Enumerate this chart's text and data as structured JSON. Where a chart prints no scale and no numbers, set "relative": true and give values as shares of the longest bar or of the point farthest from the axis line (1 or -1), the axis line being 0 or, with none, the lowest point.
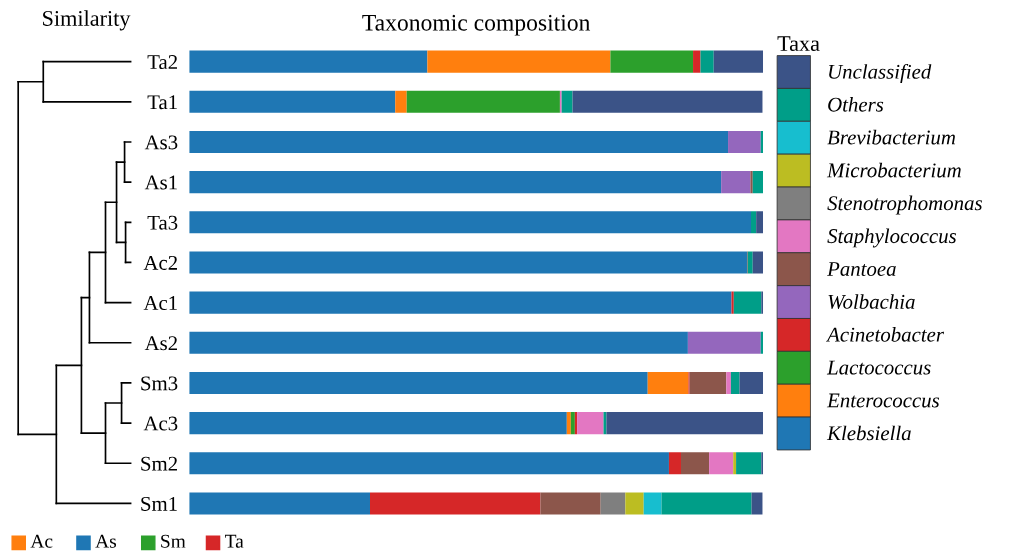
{
  "chart_data": {
    "type": "bar",
    "orientation": "horizontal",
    "stacked": true,
    "relative": true,
    "title": "Taxonomic composition",
    "legend_title": "Taxa",
    "legend": "right",
    "grid": false,
    "annotations": [
      "Similarity",
      "Ac",
      "As",
      "Sm",
      "Ta"
    ],
    "categories": [
      "Ta2",
      "Ta1",
      "As3",
      "As1",
      "Ta3",
      "Ac2",
      "Ac1",
      "As2",
      "Sm3",
      "Ac3",
      "Sm2",
      "Sm1"
    ],
    "series": [
      {
        "name": "Klebsiella",
        "color": "#1f77b4",
        "values": [
          0.415,
          0.359,
          0.939,
          0.927,
          0.979,
          0.972,
          0.945,
          0.869,
          0.799,
          0.658,
          0.836,
          0.315
        ]
      },
      {
        "name": "Enterococcus",
        "color": "#ff7f0e",
        "values": [
          0.319,
          0.02,
          0,
          0,
          0,
          0,
          0,
          0,
          0.071,
          0.007,
          0,
          0
        ]
      },
      {
        "name": "Lactococcus",
        "color": "#2ca02c",
        "values": [
          0.144,
          0.267,
          0,
          0,
          0,
          0,
          0,
          0,
          0,
          0.007,
          0,
          0
        ]
      },
      {
        "name": "Acinetobacter",
        "color": "#d62728",
        "values": [
          0.013,
          null,
          0,
          0,
          0,
          0.001,
          0.004,
          0,
          0.002,
          0.004,
          0.021,
          0.297
        ]
      },
      {
        "name": "Wolbachia",
        "color": "#9467bd",
        "values": [
          0,
          0,
          0.057,
          0.051,
          0,
          0,
          0,
          0.127,
          0,
          0,
          0,
          0
        ]
      },
      {
        "name": "Pantoea",
        "color": "#8c564b",
        "values": [
          0,
          0,
          0,
          0.004,
          0,
          0,
          0,
          0,
          0.064,
          0,
          0.049,
          0.105
        ]
      },
      {
        "name": "Staphylococcus",
        "color": "#e377c2",
        "values": [
          0,
          0.003,
          0,
          0,
          0,
          0,
          0,
          0,
          0.008,
          0.046,
          0.042,
          null
        ]
      },
      {
        "name": "Stenotrophomonas",
        "color": "#7f7f7f",
        "values": [
          0,
          0,
          0,
          0,
          0,
          0,
          0,
          0,
          0,
          0,
          0,
          0.043
        ]
      },
      {
        "name": "Microbacterium",
        "color": "#bcbd22",
        "values": [
          0,
          0,
          0,
          0,
          0,
          0,
          0,
          0,
          0,
          0,
          0.005,
          0.032
        ]
      },
      {
        "name": "Brevibacterium",
        "color": "#17becf",
        "values": [
          0,
          0,
          0,
          0,
          0,
          0,
          0,
          0,
          0,
          0,
          0,
          0.031
        ]
      },
      {
        "name": "Others",
        "color": "#009e88",
        "values": [
          0.023,
          0.019,
          0.004,
          0.018,
          0.009,
          0.009,
          0.048,
          0.004,
          0.015,
          0.005,
          0.044,
          0.157
        ]
      },
      {
        "name": "Unclassified",
        "color": "#3b5387",
        "values": [
          0.086,
          0.331,
          0,
          0,
          0.012,
          0.018,
          0.003,
          0,
          0.041,
          0.273,
          0.003,
          0.019
        ]
      }
    ]
  }
}
